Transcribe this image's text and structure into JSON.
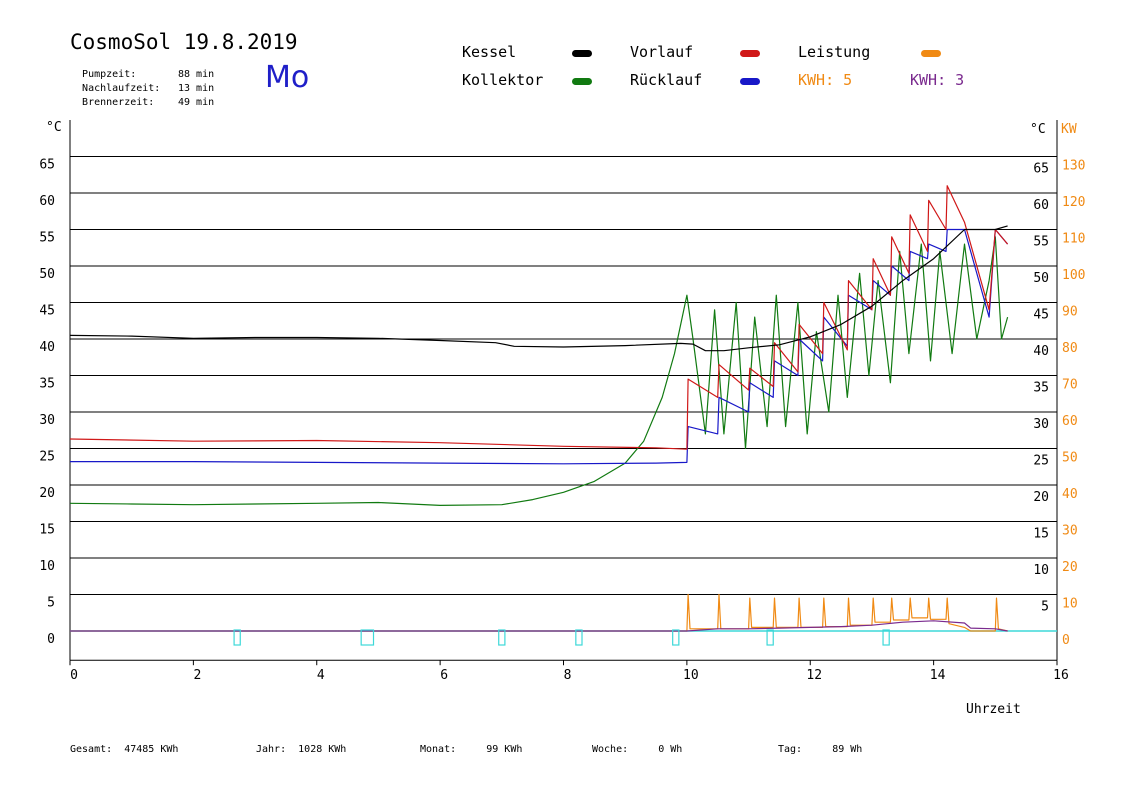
{
  "header": {
    "title": "CosmoSol 19.8.2019",
    "day": "Mo",
    "info": [
      {
        "label": "Pumpzeit:",
        "value": "88 min"
      },
      {
        "label": "Nachlaufzeit:",
        "value": "13 min"
      },
      {
        "label": "Brennerzeit:",
        "value": "49 min"
      }
    ]
  },
  "legend": {
    "kessel": "Kessel",
    "kollektor": "Kollektor",
    "vorlauf": "Vorlauf",
    "ruecklauf": "Rücklauf",
    "leistung": "Leistung",
    "kwh1": "KWH: 5",
    "kwh2": "KWH: 3"
  },
  "colors": {
    "kessel": "#000000",
    "kollektor": "#117a11",
    "vorlauf": "#d01818",
    "ruecklauf": "#1818c8",
    "leistung": "#f08a14",
    "kwh2": "#7a2a8e",
    "cyan": "#3dd8d8"
  },
  "axes": {
    "left_unit": "°C",
    "right_unit_c": "°C",
    "right_unit_kw": "KW",
    "xlabel": "Uhrzeit"
  },
  "footer": [
    {
      "label": "Gesamt:",
      "value": "47485 KWh"
    },
    {
      "label": "Jahr:",
      "value": "1028 KWh"
    },
    {
      "label": "Monat:",
      "value": "99 KWh"
    },
    {
      "label": "Woche:",
      "value": "0 Wh"
    },
    {
      "label": "Tag:",
      "value": "89 Wh"
    }
  ],
  "chart_data": {
    "type": "line",
    "xlabel": "Uhrzeit",
    "ylabel": "°C",
    "xlim": [
      0,
      16
    ],
    "ylim": [
      -5,
      70
    ],
    "x_ticks": [
      0,
      2,
      4,
      6,
      8,
      10,
      12,
      14,
      16
    ],
    "y_ticks_left": [
      0,
      5,
      10,
      15,
      20,
      25,
      30,
      35,
      40,
      45,
      50,
      55,
      60,
      65
    ],
    "y_ticks_right_c": [
      5,
      10,
      15,
      20,
      25,
      30,
      35,
      40,
      45,
      50,
      55,
      60,
      65
    ],
    "y_ticks_right_kw": [
      0,
      10,
      20,
      30,
      40,
      50,
      60,
      70,
      80,
      90,
      100,
      110,
      120,
      130
    ],
    "grid": "horizontal",
    "series": [
      {
        "name": "Kessel",
        "key": "kessel",
        "x": [
          0,
          1,
          2,
          3,
          4,
          5,
          6,
          6.9,
          7.2,
          8,
          9,
          9.9,
          10.1,
          10.3,
          10.6,
          11,
          11.5,
          12,
          12.5,
          13,
          13.5,
          14,
          14.5,
          15,
          15.2
        ],
        "y": [
          40.5,
          40.4,
          40.1,
          40.2,
          40.2,
          40.1,
          39.8,
          39.5,
          39,
          38.9,
          39.1,
          39.4,
          39.3,
          38.4,
          38.4,
          38.8,
          39.2,
          40.3,
          42,
          44.5,
          48,
          51,
          55,
          55,
          55.5
        ]
      },
      {
        "name": "Vorlauf",
        "key": "vorlauf",
        "x": [
          0,
          2,
          4,
          6,
          8,
          9.5,
          10.0,
          10.02,
          10.5,
          10.52,
          11,
          11.02,
          11.4,
          11.42,
          11.8,
          11.82,
          12.2,
          12.22,
          12.6,
          12.62,
          13.0,
          13.02,
          13.3,
          13.32,
          13.6,
          13.62,
          13.9,
          13.92,
          14.2,
          14.22,
          14.5,
          14.9,
          15.0,
          15.2
        ],
        "y": [
          26.3,
          26,
          26.1,
          25.8,
          25.3,
          25.1,
          24.9,
          34.5,
          32,
          36.5,
          33,
          36,
          33.5,
          39.5,
          35.5,
          42,
          38,
          45,
          38.5,
          48,
          44,
          51,
          46,
          54,
          49,
          57,
          52,
          59,
          55,
          61,
          56,
          44,
          55,
          53
        ]
      },
      {
        "name": "Rücklauf",
        "key": "ruecklauf",
        "x": [
          0,
          2,
          4,
          6,
          8,
          9.5,
          10.0,
          10.02,
          10.5,
          10.52,
          11,
          11.02,
          11.4,
          11.42,
          11.8,
          11.82,
          12.2,
          12.22,
          12.6,
          12.62,
          13.0,
          13.02,
          13.3,
          13.32,
          13.6,
          13.62,
          13.9,
          13.92,
          14.2,
          14.22,
          14.5,
          14.9,
          15.0,
          15.2
        ],
        "y": [
          23.2,
          23.2,
          23.1,
          23,
          22.9,
          23,
          23.1,
          28,
          27,
          32,
          30,
          34,
          32,
          37,
          35,
          40,
          37,
          43,
          39,
          46,
          44,
          48,
          46,
          50,
          48,
          52,
          51,
          53,
          52,
          55,
          55,
          43,
          55,
          53
        ]
      },
      {
        "name": "Kollektor",
        "key": "kollektor",
        "x": [
          0,
          1,
          2,
          3,
          4,
          5,
          6,
          7,
          7.5,
          8,
          8.5,
          9,
          9.3,
          9.6,
          9.8,
          10.0,
          10.1,
          10.3,
          10.45,
          10.6,
          10.8,
          10.95,
          11.1,
          11.3,
          11.45,
          11.6,
          11.8,
          11.95,
          12.1,
          12.3,
          12.45,
          12.6,
          12.8,
          12.95,
          13.1,
          13.3,
          13.45,
          13.6,
          13.8,
          13.95,
          14.1,
          14.3,
          14.5,
          14.7,
          14.9,
          15.0,
          15.1,
          15.2
        ],
        "y": [
          17.5,
          17.4,
          17.3,
          17.4,
          17.5,
          17.6,
          17.2,
          17.3,
          18,
          19,
          20.5,
          23,
          26,
          32,
          38,
          46,
          40,
          27,
          44,
          27,
          45,
          25,
          43,
          28,
          46,
          28,
          45,
          27,
          41,
          30,
          46,
          32,
          49,
          35,
          48,
          34,
          52,
          38,
          53,
          37,
          52,
          38,
          53,
          40,
          48,
          54,
          40,
          43
        ]
      },
      {
        "name": "Leistung",
        "key": "leistung",
        "x": [
          0,
          9.9,
          10.0,
          10.02,
          10.05,
          10.5,
          10.52,
          10.55,
          11,
          11.02,
          11.05,
          11.4,
          11.42,
          11.45,
          11.8,
          11.82,
          11.85,
          12.2,
          12.22,
          12.25,
          12.6,
          12.62,
          12.65,
          13.0,
          13.02,
          13.05,
          13.3,
          13.32,
          13.35,
          13.6,
          13.62,
          13.65,
          13.9,
          13.92,
          13.95,
          14.2,
          14.22,
          14.25,
          14.5,
          14.6,
          15.0,
          15.02,
          15.05,
          15.2
        ],
        "y": [
          0,
          0,
          0,
          5,
          0.3,
          0.3,
          5,
          0.3,
          0.3,
          4.5,
          0.5,
          0.5,
          4.5,
          0.5,
          0.5,
          4.5,
          0.5,
          0.5,
          4.5,
          0.6,
          0.6,
          4.5,
          0.8,
          0.8,
          4.5,
          1.2,
          1.2,
          4.5,
          1.5,
          1.5,
          4.5,
          1.8,
          1.8,
          4.5,
          1.6,
          1.6,
          4.5,
          1.0,
          0.5,
          0,
          0,
          4.5,
          0.3,
          0
        ]
      },
      {
        "name": "KWH: 3",
        "key": "kwh2",
        "x": [
          0,
          10.0,
          10.5,
          11,
          11.5,
          12,
          12.5,
          13,
          13.5,
          14,
          14.5,
          14.6,
          15.0,
          15.2
        ],
        "y": [
          0,
          0,
          0.3,
          0.3,
          0.4,
          0.5,
          0.6,
          0.8,
          1.2,
          1.4,
          1.1,
          0.4,
          0.3,
          0
        ]
      },
      {
        "name": "",
        "key": "cyan",
        "x": [
          0,
          16
        ],
        "y": [
          0,
          0
        ]
      }
    ],
    "markers": [
      {
        "x": 2.66,
        "width": 0.1
      },
      {
        "x": 4.72,
        "width": 0.2
      },
      {
        "x": 6.95,
        "width": 0.1
      },
      {
        "x": 8.2,
        "width": 0.1
      },
      {
        "x": 9.77,
        "width": 0.1
      },
      {
        "x": 11.3,
        "width": 0.1
      },
      {
        "x": 13.18,
        "width": 0.1
      }
    ]
  }
}
